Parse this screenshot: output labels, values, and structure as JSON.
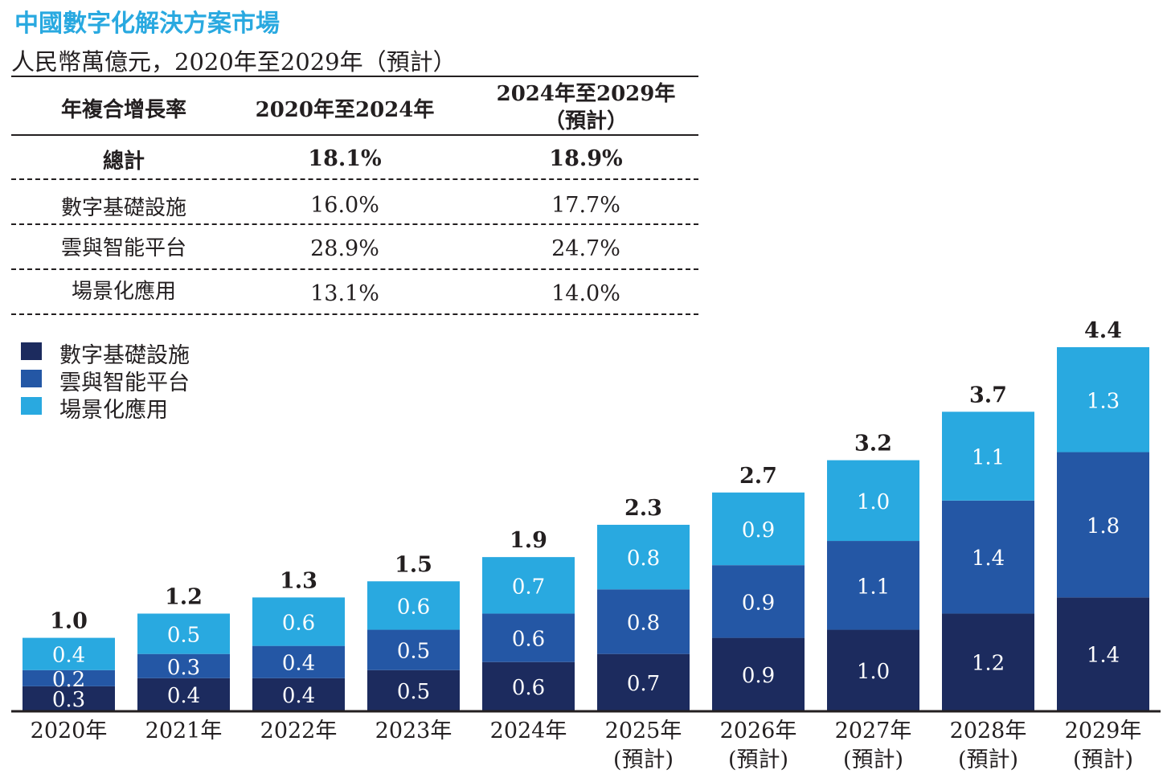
{
  "title": "中國數字化解決方案市場",
  "subtitle": "人民幣萬億元，2020年至2029年（預計）",
  "cagr_table": {
    "header": {
      "col1": "年複合增長率",
      "col2": "2020年至2024年",
      "col3_line1": "2024年至2029年",
      "col3_line2": "（預計）"
    },
    "rows": [
      {
        "label": "總計",
        "v1": "18.1%",
        "v2": "18.9%"
      },
      {
        "label": "數字基礎設施",
        "v1": "16.0%",
        "v2": "17.7%"
      },
      {
        "label": "雲與智能平台",
        "v1": "28.9%",
        "v2": "24.7%"
      },
      {
        "label": "場景化應用",
        "v1": "13.1%",
        "v2": "14.0%"
      }
    ]
  },
  "colors": {
    "title": "#29a9e0",
    "series": [
      "#1c2b5e",
      "#2457a5",
      "#29a9e0"
    ]
  },
  "chart_data": {
    "type": "bar",
    "stacked": true,
    "categories": [
      "2020年",
      "2021年",
      "2022年",
      "2023年",
      "2024年",
      "2025年\n(預計)",
      "2026年\n(預計)",
      "2027年\n(預計)",
      "2028年\n(預計)",
      "2029年\n(預計)"
    ],
    "series": [
      {
        "name": "數字基礎設施",
        "values": [
          0.3,
          0.4,
          0.4,
          0.5,
          0.6,
          0.7,
          0.9,
          1.0,
          1.2,
          1.4
        ],
        "labels": [
          "0.3",
          "0.4",
          "0.4",
          "0.5",
          "0.6",
          "0.7",
          "0.9",
          "1.0",
          "1.2",
          "1.4"
        ]
      },
      {
        "name": "雲與智能平台",
        "values": [
          0.2,
          0.3,
          0.4,
          0.5,
          0.6,
          0.8,
          0.9,
          1.1,
          1.4,
          1.8
        ],
        "labels": [
          "0.2",
          "0.3",
          "0.4",
          "0.5",
          "0.6",
          "0.8",
          "0.9",
          "1.1",
          "1.4",
          "1.8"
        ]
      },
      {
        "name": "場景化應用",
        "values": [
          0.4,
          0.5,
          0.6,
          0.6,
          0.7,
          0.8,
          0.9,
          1.0,
          1.1,
          1.3
        ],
        "labels": [
          "0.4",
          "0.5",
          "0.6",
          "0.6",
          "0.7",
          "0.8",
          "0.9",
          "1.0",
          "1.1",
          "1.3"
        ]
      }
    ],
    "totals": [
      "1.0",
      "1.2",
      "1.3",
      "1.5",
      "1.9",
      "2.3",
      "2.7",
      "3.2",
      "3.7",
      "4.4"
    ],
    "totals_values": [
      1.0,
      1.2,
      1.3,
      1.5,
      1.9,
      2.3,
      2.7,
      3.2,
      3.7,
      4.4
    ],
    "ylim": [
      0,
      4.4
    ],
    "legend_position": "top-left",
    "grid": false
  }
}
